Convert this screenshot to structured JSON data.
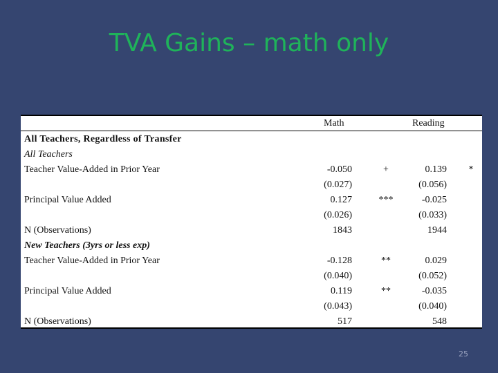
{
  "slide": {
    "title": "TVA Gains – math only",
    "page_number": "25"
  },
  "table": {
    "columns": {
      "math": "Math",
      "reading": "Reading"
    },
    "section_all": {
      "heading": "All Teachers, Regardless of Transfer",
      "subheading": "All Teachers",
      "rows": {
        "tva_prior": {
          "label": "Teacher Value-Added in Prior Year",
          "math": "-0.050",
          "math_sig": "+",
          "math_se": "(0.027)",
          "reading": "0.139",
          "reading_sig": "*",
          "reading_se": "(0.056)"
        },
        "pva": {
          "label": "Principal Value Added",
          "math": "0.127",
          "math_sig": "***",
          "math_se": "(0.026)",
          "reading": "-0.025",
          "reading_sig": "",
          "reading_se": "(0.033)"
        },
        "n_obs": {
          "label": "N (Observations)",
          "math": "1843",
          "reading": "1944"
        }
      }
    },
    "section_new": {
      "subheading": "New Teachers (3yrs or less exp)",
      "rows": {
        "tva_prior": {
          "label": "Teacher Value-Added in Prior Year",
          "math": "-0.128",
          "math_sig": "**",
          "math_se": "(0.040)",
          "reading": "0.029",
          "reading_sig": "",
          "reading_se": "(0.052)"
        },
        "pva": {
          "label": "Principal Value Added",
          "math": "0.119",
          "math_sig": "**",
          "math_se": "(0.043)",
          "reading": "-0.035",
          "reading_sig": "",
          "reading_se": "(0.040)"
        },
        "n_obs": {
          "label": "N (Observations)",
          "math": "517",
          "reading": "548"
        }
      }
    }
  }
}
